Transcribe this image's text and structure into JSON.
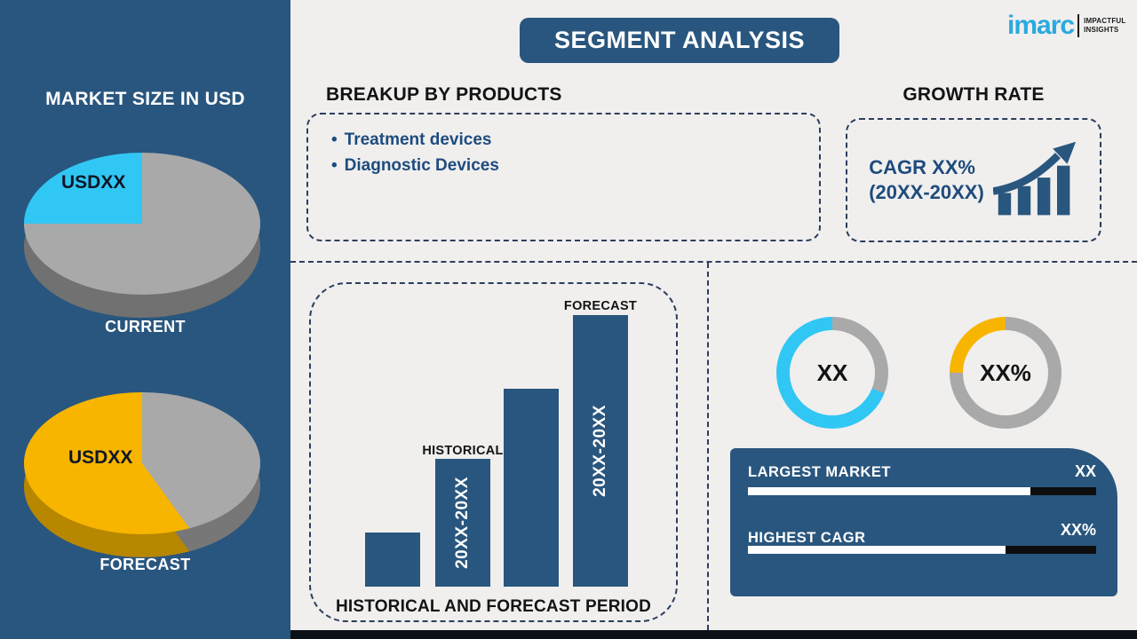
{
  "header": {
    "title": "SEGMENT ANALYSIS",
    "logo": {
      "brand": "imarc",
      "tagline1": "IMPACTFUL",
      "tagline2": "INSIGHTS"
    }
  },
  "sidebar": {
    "title": "MARKET SIZE IN USD"
  },
  "breakup": {
    "heading": "BREAKUP BY PRODUCTS",
    "items": [
      "Treatment devices",
      "Diagnostic Devices"
    ]
  },
  "growth": {
    "heading": "GROWTH RATE",
    "cagr_line1": "CAGR XX%",
    "cagr_line2": "(20XX-20XX)"
  },
  "stats": {
    "rows": [
      {
        "label": "LARGEST MARKET",
        "value": "XX",
        "fill_percent": 81
      },
      {
        "label": "HIGHEST CAGR",
        "value": "XX%",
        "fill_percent": 74
      }
    ]
  },
  "colors": {
    "accent_blue": "#29567e",
    "cyan": "#31c7f4",
    "yellow": "#f7b500",
    "gray": "#a9a9a9",
    "background": "#f0efee",
    "navy_text": "#1e4b7d",
    "bottom_bar": "#0c1117"
  },
  "chart_data": [
    {
      "type": "pie",
      "title": "CURRENT",
      "labels": [
        "",
        "USDXX"
      ],
      "values": [
        75,
        25
      ],
      "colors": [
        "#a9a9a9",
        "#31c7f4"
      ],
      "side_colors": [
        "#777777",
        "#777777"
      ],
      "style": "3d-pie, cyan slice in upper-left quadrant"
    },
    {
      "type": "pie",
      "title": "FORECAST",
      "labels": [
        "",
        "USDXX"
      ],
      "values": [
        40,
        60
      ],
      "colors": [
        "#a9a9a9",
        "#f7b500"
      ],
      "side_colors": [
        "#7d7d7d",
        "#c18e00"
      ],
      "style": "3d-pie, yellow majority slice on left"
    },
    {
      "type": "bar",
      "title": "HISTORICAL AND FORECAST PERIOD",
      "categories": [
        "",
        "20XX-20XX",
        "",
        "20XX-20XX"
      ],
      "values": [
        20,
        47,
        73,
        100
      ],
      "bar_labels": [
        "",
        "HISTORICAL",
        "",
        "FORECAST"
      ],
      "bar_color": "#29567e",
      "ylim": [
        0,
        100
      ],
      "grid": false
    },
    {
      "type": "donut",
      "center_label": "XX",
      "values": [
        31,
        69
      ],
      "colors": [
        "#a9a9a9",
        "#31c7f4"
      ],
      "legend": "LARGEST MARKET indicator"
    },
    {
      "type": "donut",
      "center_label": "XX%",
      "values": [
        75,
        25
      ],
      "colors": [
        "#a9a9a9",
        "#f7b500"
      ],
      "legend": "HIGHEST CAGR indicator"
    }
  ]
}
